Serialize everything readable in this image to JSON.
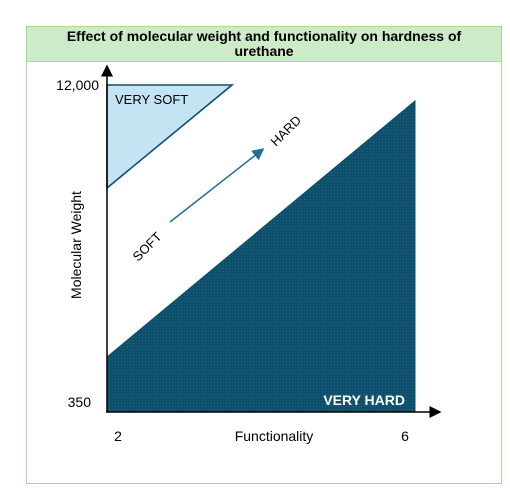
{
  "title": "Effect of molecular weight and functionality on hardness of urethane",
  "y_axis": {
    "label": "Molecular Weight",
    "top_tick": "12,000",
    "bottom_tick": "350"
  },
  "x_axis": {
    "label": "Functionality",
    "left_tick": "2",
    "right_tick": "6"
  },
  "regions": {
    "very_soft": "VERY SOFT",
    "very_hard": "VERY HARD",
    "soft": "SOFT",
    "hard": "HARD"
  },
  "colors": {
    "very_soft_fill": "#c4e4f3",
    "very_hard_fill": "#0e4f6c",
    "arrow": "#1f6f96",
    "title_bg": "#cdebc8",
    "frame": "#a9d99a"
  }
}
